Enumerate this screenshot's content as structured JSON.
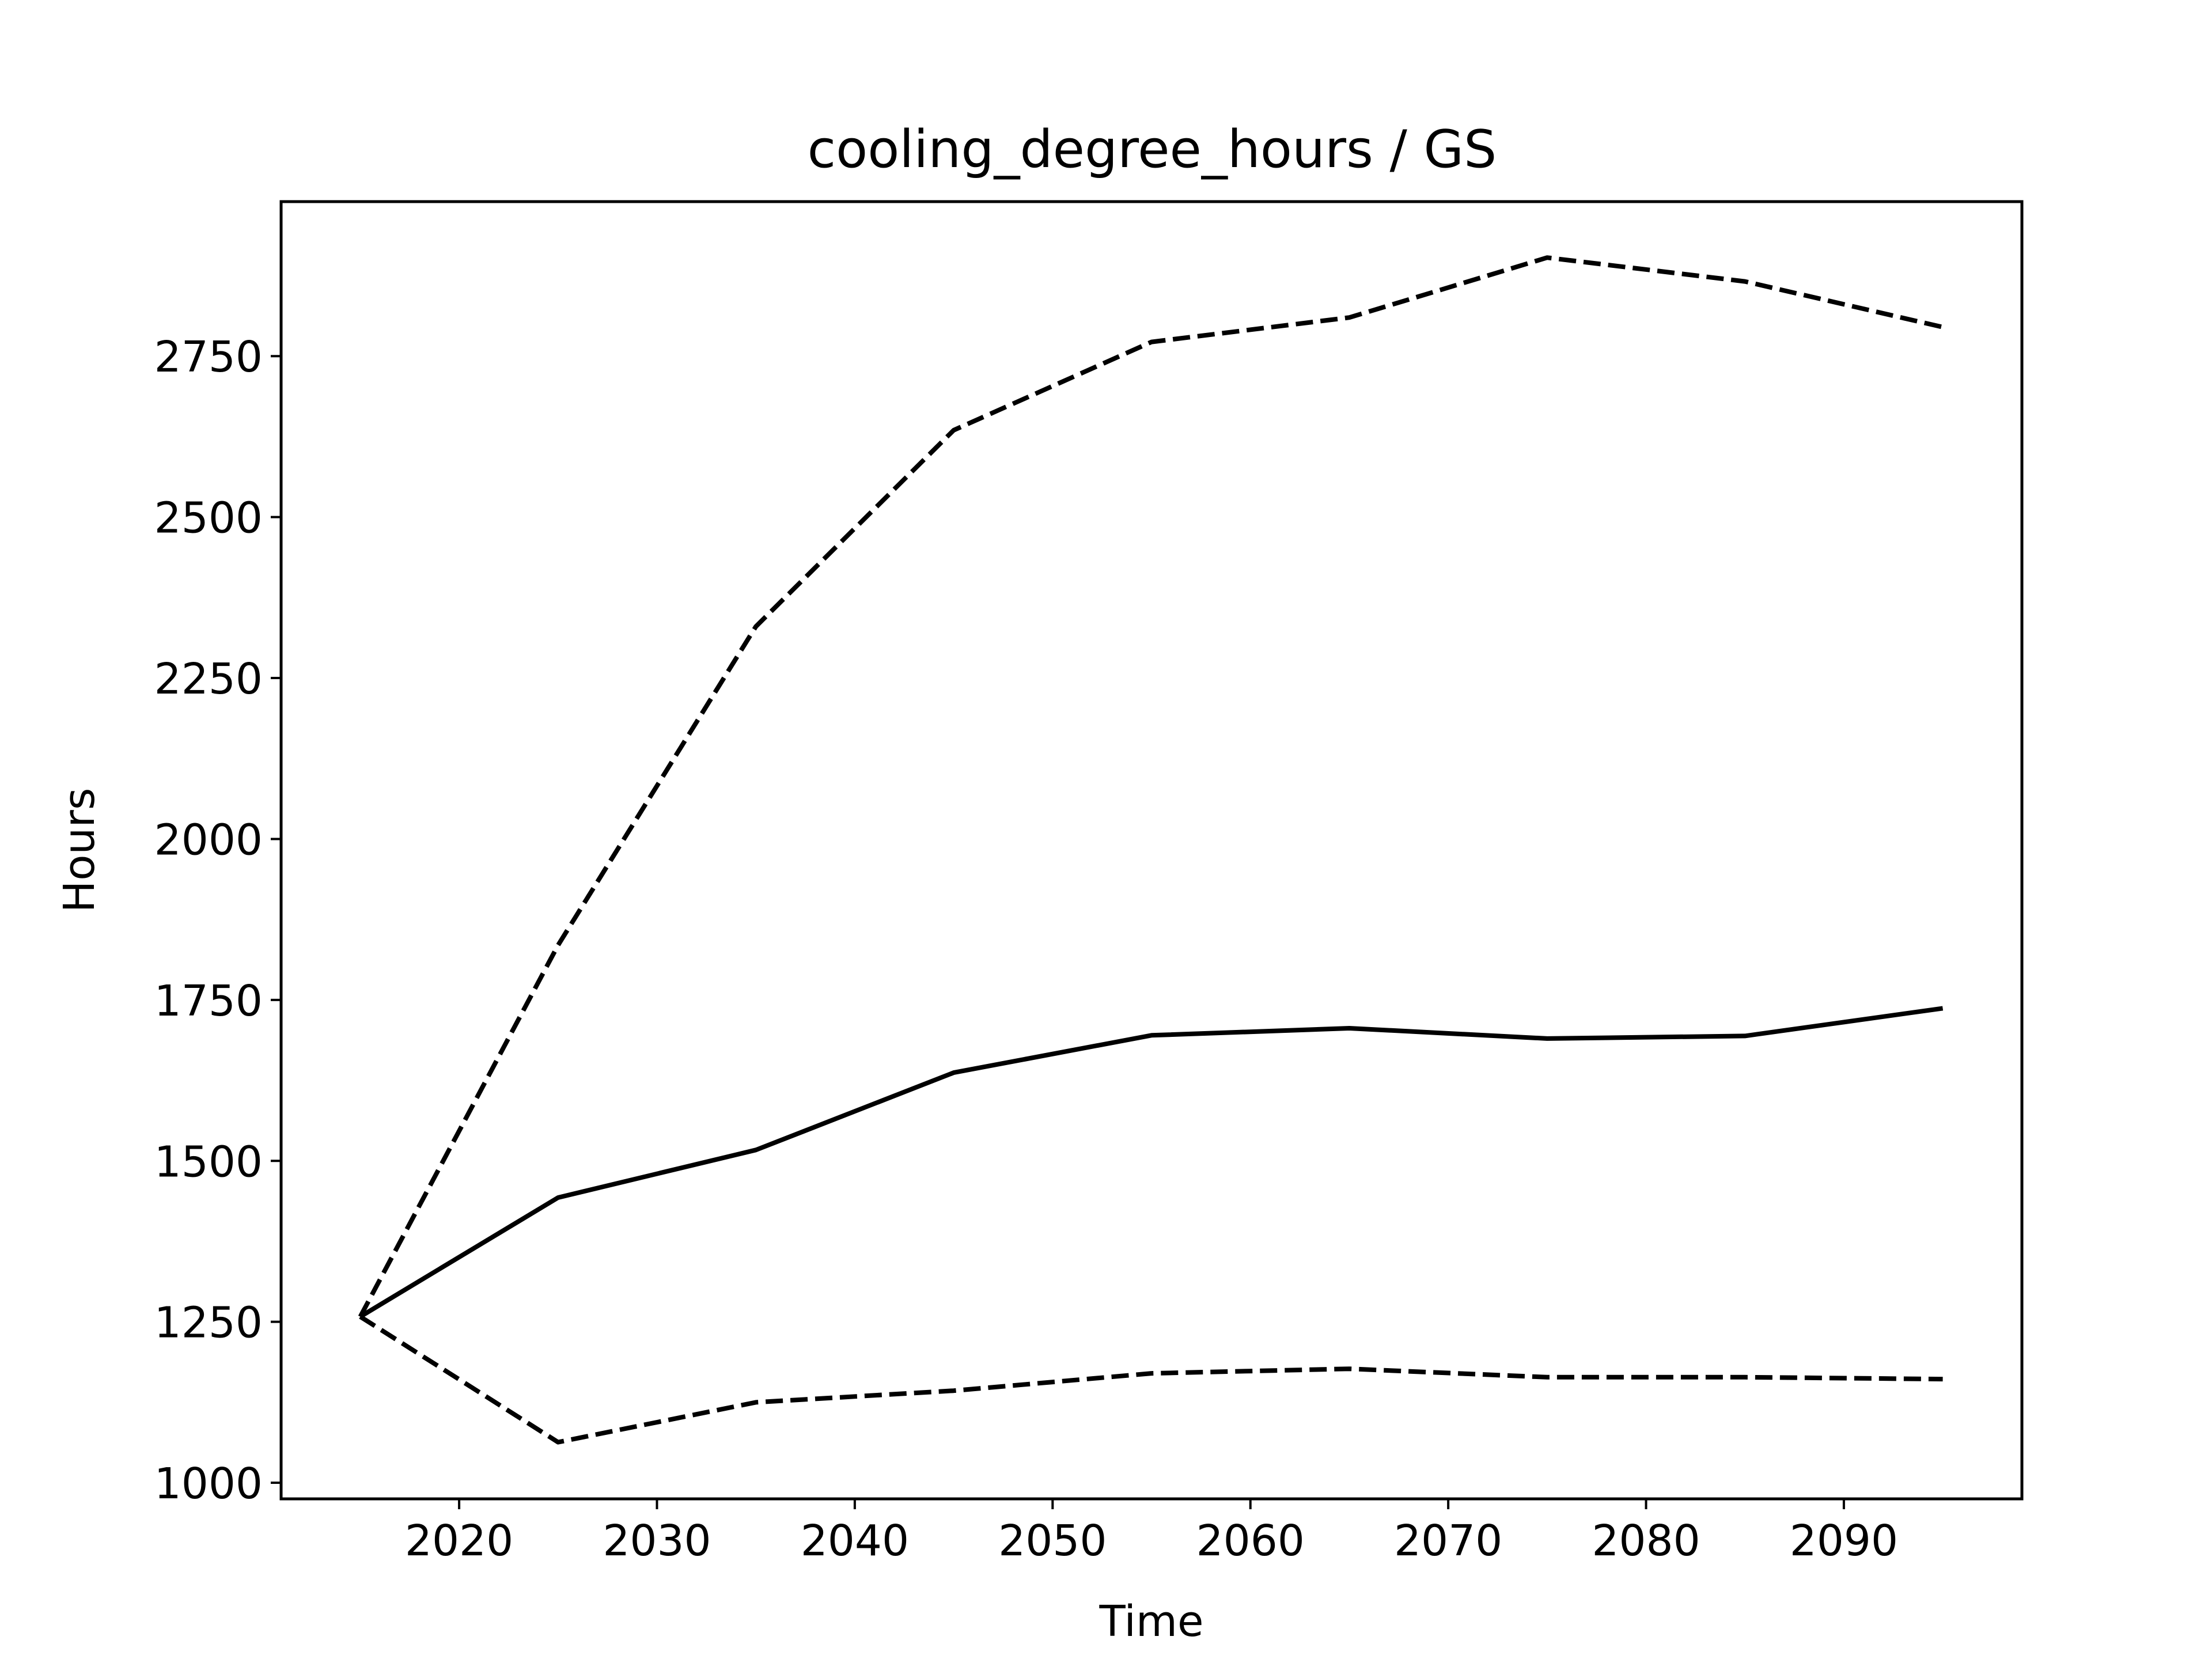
{
  "chart_data": {
    "type": "line",
    "title": "cooling_degree_hours / GS",
    "xlabel": "Time",
    "ylabel": "Hours",
    "xlim": [
      2011,
      2099
    ],
    "ylim": [
      975,
      2990
    ],
    "xticks": [
      2020,
      2030,
      2040,
      2050,
      2060,
      2070,
      2080,
      2090
    ],
    "yticks": [
      1000,
      1250,
      1500,
      1750,
      2000,
      2250,
      2500,
      2750
    ],
    "grid": false,
    "x": [
      2015,
      2025,
      2035,
      2045,
      2055,
      2065,
      2075,
      2085,
      2095
    ],
    "series": [
      {
        "style": "solid",
        "values": [
          1258,
          1443,
          1517,
          1637,
          1695,
          1706,
          1690,
          1694,
          1737
        ]
      },
      {
        "style": "dashed",
        "values": [
          1258,
          1835,
          2330,
          2635,
          2772,
          2810,
          2903,
          2866,
          2795
        ]
      },
      {
        "style": "dashed",
        "values": [
          1258,
          1063,
          1125,
          1143,
          1170,
          1177,
          1164,
          1164,
          1161
        ]
      }
    ],
    "line_color": "#000000"
  }
}
